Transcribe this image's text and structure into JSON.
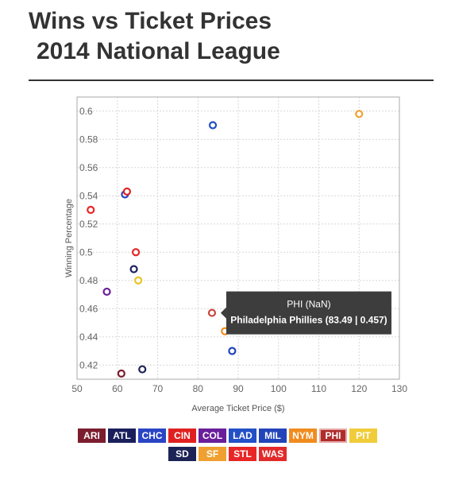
{
  "title": {
    "line1": "Wins vs Ticket Prices",
    "line2": "2014 National League"
  },
  "chart_data": {
    "type": "scatter",
    "title": "Wins vs Ticket Prices 2014 National League",
    "xlabel": "Average Ticket Price ($)",
    "ylabel": "Winning Percentage",
    "xlim": [
      50,
      130
    ],
    "ylim": [
      0.41,
      0.61
    ],
    "xticks": [
      "50",
      "60",
      "70",
      "80",
      "90",
      "100",
      "110",
      "120",
      "130"
    ],
    "yticks": [
      "0.42",
      "0.44",
      "0.46",
      "0.48",
      "0.5",
      "0.52",
      "0.54",
      "0.56",
      "0.58",
      "0.6"
    ],
    "grid": true,
    "points": [
      {
        "team": "ARI",
        "x": 61.0,
        "y": 0.414,
        "color": "#7b1d2e"
      },
      {
        "team": "ATL",
        "x": 64.1,
        "y": 0.488,
        "color": "#1a1f5c"
      },
      {
        "team": "CHC",
        "x": 61.9,
        "y": 0.541,
        "color": "#2a45c4"
      },
      {
        "team": "CIN",
        "x": 62.4,
        "y": 0.543,
        "color": "#e02020"
      },
      {
        "team": "COL",
        "x": 57.4,
        "y": 0.472,
        "color": "#6a1e9a"
      },
      {
        "team": "LAD",
        "x": 83.7,
        "y": 0.59,
        "color": "#2250c7"
      },
      {
        "team": "MIL",
        "x": 88.5,
        "y": 0.43,
        "color": "#2244bb"
      },
      {
        "team": "NYM",
        "x": 86.7,
        "y": 0.444,
        "color": "#f08c1e"
      },
      {
        "team": "PHI",
        "x": 83.49,
        "y": 0.457,
        "color": "#c9463d"
      },
      {
        "team": "PIT",
        "x": 65.2,
        "y": 0.48,
        "color": "#e8c42a"
      },
      {
        "team": "SD",
        "x": 66.2,
        "y": 0.417,
        "color": "#1c2355"
      },
      {
        "team": "SF",
        "x": 120.0,
        "y": 0.598,
        "color": "#f0a030"
      },
      {
        "team": "STL",
        "x": 53.4,
        "y": 0.53,
        "color": "#e82626"
      },
      {
        "team": "WAS",
        "x": 64.6,
        "y": 0.5,
        "color": "#e32a2a"
      }
    ]
  },
  "tooltip": {
    "line1": "PHI (NaN)",
    "line2": "Philadelphia Phillies (83.49 | 0.457)"
  },
  "legend": {
    "row1": [
      {
        "label": "ARI",
        "color": "#7b1d2e"
      },
      {
        "label": "ATL",
        "color": "#1a1f5c"
      },
      {
        "label": "CHC",
        "color": "#2a45c4"
      },
      {
        "label": "CIN",
        "color": "#e02020"
      },
      {
        "label": "COL",
        "color": "#6a1e9a"
      },
      {
        "label": "LAD",
        "color": "#2250c7"
      },
      {
        "label": "MIL",
        "color": "#2244bb"
      },
      {
        "label": "NYM",
        "color": "#f08c1e"
      },
      {
        "label": "PHI",
        "color": "#b02c2c",
        "active": true
      },
      {
        "label": "PIT",
        "color": "#f0cc3a"
      }
    ],
    "row2": [
      {
        "label": "SD",
        "color": "#1c2355"
      },
      {
        "label": "SF",
        "color": "#f0a030"
      },
      {
        "label": "STL",
        "color": "#e82626"
      },
      {
        "label": "WAS",
        "color": "#e32a2a"
      }
    ]
  }
}
